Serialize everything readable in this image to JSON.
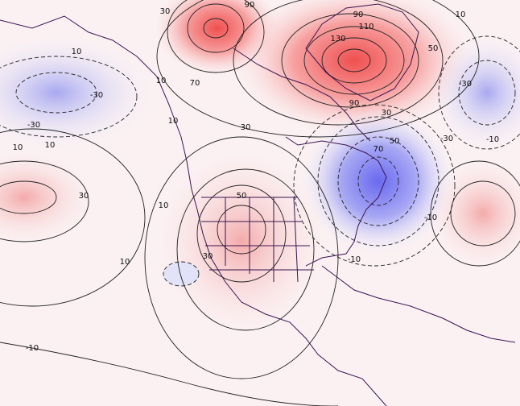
{
  "contour_labels": [
    "90",
    "30",
    "90",
    "110",
    "130",
    "50",
    "10",
    "10",
    "-30",
    "-30",
    "10",
    "10",
    "10",
    "70",
    "30",
    "90",
    "30",
    "-30",
    "-10",
    "50",
    "-30",
    "70",
    "10",
    "10",
    "30",
    "50",
    "30",
    "10",
    "-10",
    "-10",
    "-10"
  ]
}
